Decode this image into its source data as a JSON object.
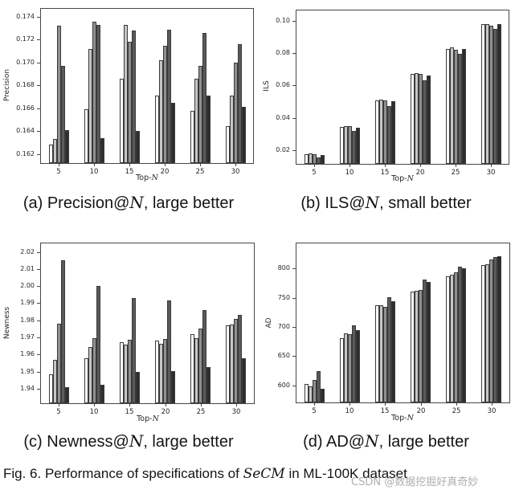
{
  "figure": {
    "captions": {
      "a": {
        "prefix": "(a) Precision@",
        "math": "N",
        "suffix": ", large better"
      },
      "b": {
        "prefix": "(b) ILS@",
        "math": "N",
        "suffix": ", small better"
      },
      "c": {
        "prefix": "(c) Newness@",
        "math": "N",
        "suffix": ", large better"
      },
      "d": {
        "prefix": "(d) AD@",
        "math": "N",
        "suffix": ", large better"
      }
    },
    "fig_caption": {
      "prefix": "Fig. 6. Performance of specifications of ",
      "math": "SeCM",
      "suffix": " in ML-100K dataset"
    },
    "watermark": "CSDN @数据挖掘好真奇妙"
  },
  "style": {
    "bar_colors": [
      "#ffffff",
      "#c6c6c6",
      "#909090",
      "#5a5a5a",
      "#2d2d2d"
    ],
    "bar_edge_color": "#3a3a3a",
    "axis_color": "#474747",
    "tick_label_color": "#262626"
  },
  "chart_data": [
    {
      "id": "precision",
      "type": "bar",
      "title": "(a) Precision@N, large better",
      "ylabel": "Precision",
      "xlabel": {
        "prefix": "Top-",
        "math": "N"
      },
      "categories": [
        "5",
        "10",
        "15",
        "20",
        "25",
        "30"
      ],
      "ylim": [
        0.1612,
        0.1747
      ],
      "yticks": [
        "0.162",
        "0.164",
        "0.166",
        "0.168",
        "0.170",
        "0.172",
        "0.174"
      ],
      "legend": "none",
      "series_per_group": 5,
      "groups": [
        [
          0.1628,
          0.1633,
          0.1732,
          0.1697,
          0.1641
        ],
        [
          0.1659,
          0.1712,
          0.1736,
          0.1733,
          0.1634
        ],
        [
          0.1686,
          0.1733,
          0.1718,
          0.1728,
          0.164
        ],
        [
          0.1671,
          0.1702,
          0.1715,
          0.1729,
          0.1665
        ],
        [
          0.1658,
          0.1686,
          0.1697,
          0.1726,
          0.1671
        ],
        [
          0.1644,
          0.1671,
          0.17,
          0.1716,
          0.1661
        ]
      ]
    },
    {
      "id": "ils",
      "type": "bar",
      "title": "(b) ILS@N, small better",
      "ylabel": "ILS",
      "xlabel": {
        "prefix": "Top-",
        "math": "N"
      },
      "categories": [
        "5",
        "10",
        "15",
        "20",
        "25",
        "30"
      ],
      "ylim": [
        0.0115,
        0.1065
      ],
      "yticks": [
        "0.02",
        "0.04",
        "0.06",
        "0.08",
        "0.10"
      ],
      "legend": "none",
      "series_per_group": 5,
      "groups": [
        [
          0.0175,
          0.0178,
          0.0176,
          0.0157,
          0.017
        ],
        [
          0.0346,
          0.0349,
          0.0347,
          0.0317,
          0.0341
        ],
        [
          0.0506,
          0.0513,
          0.0509,
          0.0474,
          0.0501
        ],
        [
          0.0673,
          0.0679,
          0.0671,
          0.0631,
          0.0663
        ],
        [
          0.0827,
          0.0838,
          0.082,
          0.0794,
          0.0827
        ],
        [
          0.0979,
          0.0982,
          0.097,
          0.095,
          0.0981
        ]
      ]
    },
    {
      "id": "newness",
      "type": "bar",
      "title": "(c) Newness@N, large better",
      "ylabel": "Newness",
      "xlabel": {
        "prefix": "Top-",
        "math": "N"
      },
      "categories": [
        "5",
        "10",
        "15",
        "20",
        "25",
        "30"
      ],
      "ylim": [
        1.9315,
        2.025
      ],
      "yticks": [
        "1.94",
        "1.95",
        "1.96",
        "1.97",
        "1.98",
        "1.99",
        "2.00",
        "2.01",
        "2.02"
      ],
      "legend": "none",
      "series_per_group": 5,
      "groups": [
        [
          1.9485,
          1.957,
          1.978,
          2.015,
          1.941
        ],
        [
          1.958,
          1.9645,
          1.9695,
          2.0,
          1.9425
        ],
        [
          1.967,
          1.9658,
          1.9687,
          1.993,
          1.95
        ],
        [
          1.968,
          1.9665,
          1.969,
          1.9918,
          1.9505
        ],
        [
          1.972,
          1.9695,
          1.9752,
          1.986,
          1.9528
        ],
        [
          1.977,
          1.9775,
          1.981,
          1.983,
          1.9578
        ]
      ]
    },
    {
      "id": "ad",
      "type": "bar",
      "title": "(d) AD@N, large better",
      "ylabel": "AD",
      "xlabel": {
        "prefix": "Top-",
        "math": "N"
      },
      "categories": [
        "5",
        "10",
        "15",
        "20",
        "25",
        "30"
      ],
      "ylim": [
        571,
        843
      ],
      "yticks": [
        "600",
        "650",
        "700",
        "750",
        "800"
      ],
      "legend": "none",
      "series_per_group": 5,
      "groups": [
        [
          603,
          599,
          609,
          624,
          594
        ],
        [
          681,
          689,
          688,
          703,
          694
        ],
        [
          737,
          737,
          734,
          751,
          744
        ],
        [
          760,
          762,
          764,
          781,
          777
        ],
        [
          787,
          789,
          794,
          803,
          801
        ],
        [
          806,
          807,
          815,
          820,
          821
        ]
      ]
    }
  ]
}
